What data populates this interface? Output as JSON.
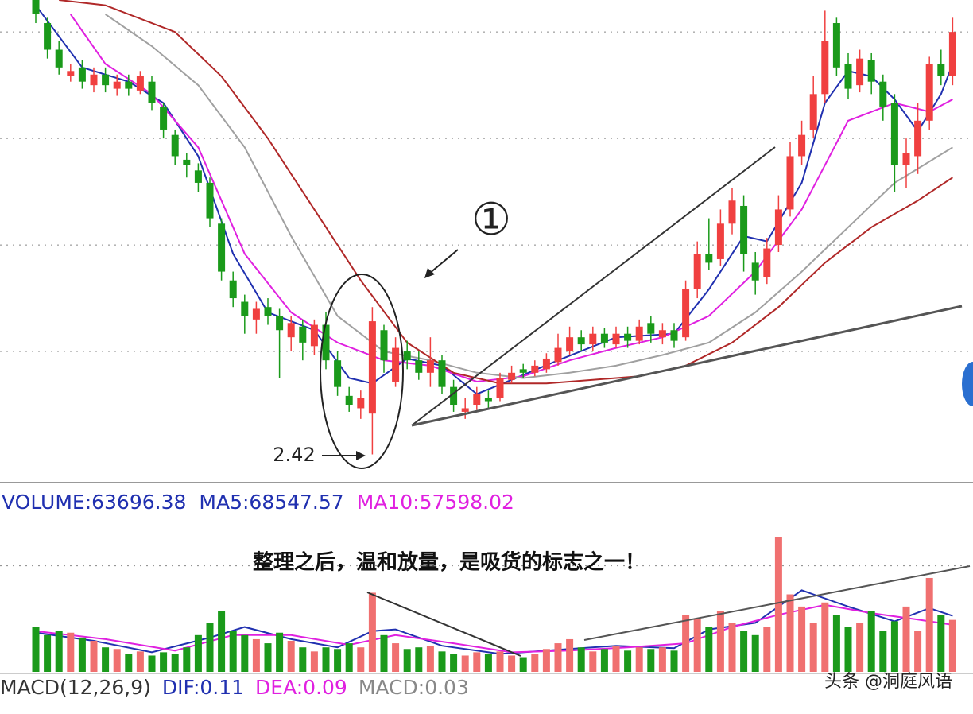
{
  "chart_data": [
    {
      "type": "candlestick",
      "ylim": [
        2.27,
        4.98
      ],
      "yticks": [
        3.0,
        3.6,
        4.2,
        4.8
      ],
      "grid": true,
      "up_color": "#f04040",
      "down_color": "#1a9a1a",
      "open": [
        5.0,
        4.85,
        4.7,
        4.55,
        4.6,
        4.5,
        4.56,
        4.48,
        4.52,
        4.47,
        4.52,
        4.38,
        4.22,
        4.08,
        4.02,
        3.95,
        3.72,
        3.4,
        3.28,
        3.18,
        3.25,
        3.2,
        3.08,
        3.14,
        3.03,
        3.15,
        2.95,
        2.75,
        2.68,
        2.65,
        3.12,
        2.83,
        3.0,
        2.95,
        2.88,
        2.95,
        2.8,
        2.66,
        2.7,
        2.74,
        2.74,
        2.84,
        2.9,
        2.88,
        2.9,
        2.94,
        3.0,
        3.08,
        3.04,
        3.1,
        3.04,
        3.1,
        3.06,
        3.16,
        3.08,
        3.12,
        3.08,
        3.35,
        3.55,
        3.52,
        3.72,
        3.82,
        3.5,
        3.42,
        3.6,
        3.8,
        4.1,
        4.25,
        4.45,
        4.85,
        4.62,
        4.5,
        4.64,
        4.52,
        4.4,
        4.05,
        4.1,
        4.3,
        4.62,
        4.55
      ],
      "high": [
        5.05,
        4.88,
        4.75,
        4.62,
        4.64,
        4.6,
        4.6,
        4.56,
        4.56,
        4.58,
        4.55,
        4.4,
        4.25,
        4.12,
        4.06,
        3.98,
        3.75,
        3.45,
        3.32,
        3.28,
        3.3,
        3.24,
        3.2,
        3.18,
        3.18,
        3.22,
        3.0,
        2.8,
        2.78,
        3.25,
        3.15,
        3.08,
        3.06,
        3.0,
        3.08,
        2.98,
        2.84,
        2.74,
        2.8,
        2.78,
        2.88,
        2.92,
        2.93,
        2.95,
        2.99,
        3.1,
        3.14,
        3.12,
        3.14,
        3.13,
        3.14,
        3.14,
        3.18,
        3.2,
        3.16,
        3.16,
        3.4,
        3.62,
        3.75,
        3.8,
        3.92,
        3.88,
        3.56,
        3.64,
        3.88,
        4.18,
        4.3,
        4.55,
        4.92,
        4.88,
        4.68,
        4.7,
        4.68,
        4.56,
        4.45,
        4.2,
        4.4,
        4.66,
        4.7,
        4.88
      ],
      "low": [
        4.85,
        4.65,
        4.56,
        4.52,
        4.48,
        4.46,
        4.46,
        4.44,
        4.44,
        4.45,
        4.36,
        4.2,
        4.05,
        3.98,
        3.9,
        3.7,
        3.4,
        3.25,
        3.1,
        3.1,
        3.15,
        2.85,
        3.0,
        2.95,
        2.98,
        2.9,
        2.75,
        2.66,
        2.62,
        2.42,
        2.88,
        2.8,
        2.9,
        2.84,
        2.8,
        2.76,
        2.66,
        2.62,
        2.67,
        2.68,
        2.72,
        2.82,
        2.85,
        2.86,
        2.88,
        2.92,
        2.98,
        3.0,
        3.0,
        3.02,
        3.02,
        3.02,
        3.04,
        3.05,
        3.04,
        3.02,
        3.06,
        3.3,
        3.46,
        3.48,
        3.66,
        3.45,
        3.32,
        3.38,
        3.56,
        3.76,
        4.05,
        4.2,
        4.4,
        4.55,
        4.42,
        4.46,
        4.45,
        4.3,
        3.9,
        3.92,
        4.0,
        4.25,
        4.5,
        4.5
      ],
      "close": [
        4.9,
        4.7,
        4.6,
        4.58,
        4.52,
        4.56,
        4.5,
        4.52,
        4.48,
        4.55,
        4.4,
        4.25,
        4.1,
        4.05,
        3.95,
        3.75,
        3.45,
        3.3,
        3.2,
        3.24,
        3.2,
        3.12,
        3.16,
        3.05,
        3.15,
        2.95,
        2.8,
        2.7,
        2.74,
        3.17,
        2.95,
        3.02,
        2.95,
        2.88,
        2.95,
        2.8,
        2.7,
        2.68,
        2.76,
        2.72,
        2.85,
        2.88,
        2.88,
        2.92,
        2.96,
        3.02,
        3.08,
        3.04,
        3.1,
        3.05,
        3.1,
        3.06,
        3.14,
        3.1,
        3.12,
        3.06,
        3.35,
        3.55,
        3.5,
        3.72,
        3.85,
        3.55,
        3.4,
        3.58,
        3.8,
        4.1,
        4.22,
        4.45,
        4.75,
        4.6,
        4.48,
        4.65,
        4.52,
        4.38,
        4.05,
        4.12,
        4.3,
        4.62,
        4.55,
        4.8
      ],
      "lines": [
        {
          "color": "#2030b0",
          "x": [
            0,
            4,
            8,
            11,
            14,
            17,
            20,
            24,
            27,
            29,
            32,
            35,
            38,
            41,
            45,
            50,
            55,
            58,
            61,
            63,
            66,
            68,
            70,
            72,
            74,
            76,
            78,
            79
          ],
          "values": [
            4.95,
            4.6,
            4.52,
            4.4,
            4.1,
            3.55,
            3.22,
            3.12,
            2.85,
            2.82,
            2.96,
            2.92,
            2.76,
            2.84,
            2.95,
            3.08,
            3.1,
            3.35,
            3.65,
            3.62,
            3.95,
            4.4,
            4.58,
            4.55,
            4.42,
            4.24,
            4.45,
            4.62
          ]
        },
        {
          "color": "#e020e0",
          "x": [
            3,
            6,
            10,
            14,
            18,
            22,
            26,
            30,
            34,
            38,
            42,
            46,
            50,
            54,
            58,
            62,
            66,
            70,
            74,
            77,
            79
          ],
          "values": [
            4.9,
            4.62,
            4.45,
            4.15,
            3.55,
            3.22,
            3.05,
            2.95,
            2.92,
            2.83,
            2.86,
            2.95,
            3.02,
            3.08,
            3.2,
            3.45,
            3.8,
            4.3,
            4.4,
            4.35,
            4.42
          ]
        },
        {
          "color": "#a0a0a0",
          "x": [
            6,
            10,
            14,
            18,
            22,
            26,
            30,
            34,
            38,
            42,
            46,
            50,
            54,
            58,
            62,
            66,
            70,
            74,
            79
          ],
          "values": [
            4.9,
            4.72,
            4.5,
            4.15,
            3.65,
            3.2,
            3.0,
            2.95,
            2.88,
            2.85,
            2.88,
            2.92,
            2.98,
            3.05,
            3.22,
            3.45,
            3.7,
            3.95,
            4.15
          ]
        },
        {
          "color": "#b02828",
          "x": [
            2,
            6,
            12,
            16,
            20,
            24,
            28,
            32,
            36,
            40,
            44,
            48,
            52,
            56,
            60,
            64,
            68,
            72,
            76,
            79
          ],
          "values": [
            4.98,
            4.95,
            4.8,
            4.55,
            4.2,
            3.8,
            3.4,
            3.05,
            2.88,
            2.82,
            2.82,
            2.84,
            2.86,
            2.92,
            3.05,
            3.25,
            3.5,
            3.7,
            3.85,
            3.98
          ]
        }
      ],
      "annotations": [
        "①",
        "2.42"
      ]
    },
    {
      "type": "bar",
      "ylim": [
        0,
        190000
      ],
      "yticks": [
        130000
      ],
      "grid": true,
      "values": [
        55000,
        45000,
        50000,
        48000,
        42000,
        38000,
        30000,
        28000,
        22000,
        25000,
        20000,
        24000,
        22000,
        30000,
        45000,
        60000,
        75000,
        50000,
        45000,
        40000,
        35000,
        48000,
        38000,
        30000,
        25000,
        30000,
        28000,
        35000,
        30000,
        97000,
        45000,
        35000,
        28000,
        30000,
        32000,
        25000,
        22000,
        20000,
        24000,
        22000,
        25000,
        20000,
        18000,
        22000,
        28000,
        35000,
        40000,
        30000,
        25000,
        28000,
        32000,
        26000,
        30000,
        28000,
        30000,
        26000,
        70000,
        65000,
        55000,
        75000,
        60000,
        50000,
        45000,
        55000,
        165000,
        95000,
        80000,
        60000,
        85000,
        70000,
        55000,
        60000,
        75000,
        50000,
        62000,
        80000,
        50000,
        115000,
        70000,
        63696.38
      ],
      "header": [
        {
          "text": "VOLUME:63696.38",
          "color": "#2030b0"
        },
        {
          "text": "MA5:68547.57",
          "color": "#2030b0"
        },
        {
          "text": "MA10:57598.02",
          "color": "#e020e0"
        }
      ],
      "lines": [
        {
          "color": "#2030b0",
          "x": [
            0,
            5,
            10,
            15,
            18,
            22,
            26,
            29,
            31,
            35,
            40,
            45,
            50,
            55,
            58,
            62,
            64,
            66,
            70,
            74,
            77,
            79
          ],
          "values": [
            48000,
            38000,
            24000,
            42000,
            55000,
            40000,
            30000,
            50000,
            52000,
            32000,
            22000,
            27000,
            32000,
            29000,
            52000,
            60000,
            80000,
            100000,
            80000,
            62000,
            78000,
            68547.57
          ]
        },
        {
          "color": "#e020e0",
          "x": [
            0,
            6,
            12,
            17,
            22,
            27,
            31,
            36,
            41,
            46,
            51,
            56,
            60,
            64,
            68,
            72,
            76,
            79
          ],
          "values": [
            50000,
            40000,
            26000,
            45000,
            45000,
            33000,
            45000,
            35000,
            24000,
            26000,
            30000,
            35000,
            55000,
            70000,
            82000,
            72000,
            64000,
            57598.02
          ]
        }
      ],
      "annotation": "整理之后，温和放量，是吸货的标志之一！"
    }
  ],
  "macd_header": [
    {
      "text": "MACD(12,26,9)",
      "color": "#333333"
    },
    {
      "text": "DIF:0.11",
      "color": "#2030b0"
    },
    {
      "text": "DEA:0.09",
      "color": "#e020e0"
    },
    {
      "text": "MACD:0.03",
      "color": "#888888"
    }
  ],
  "watermark": "头条 @洞庭风语"
}
